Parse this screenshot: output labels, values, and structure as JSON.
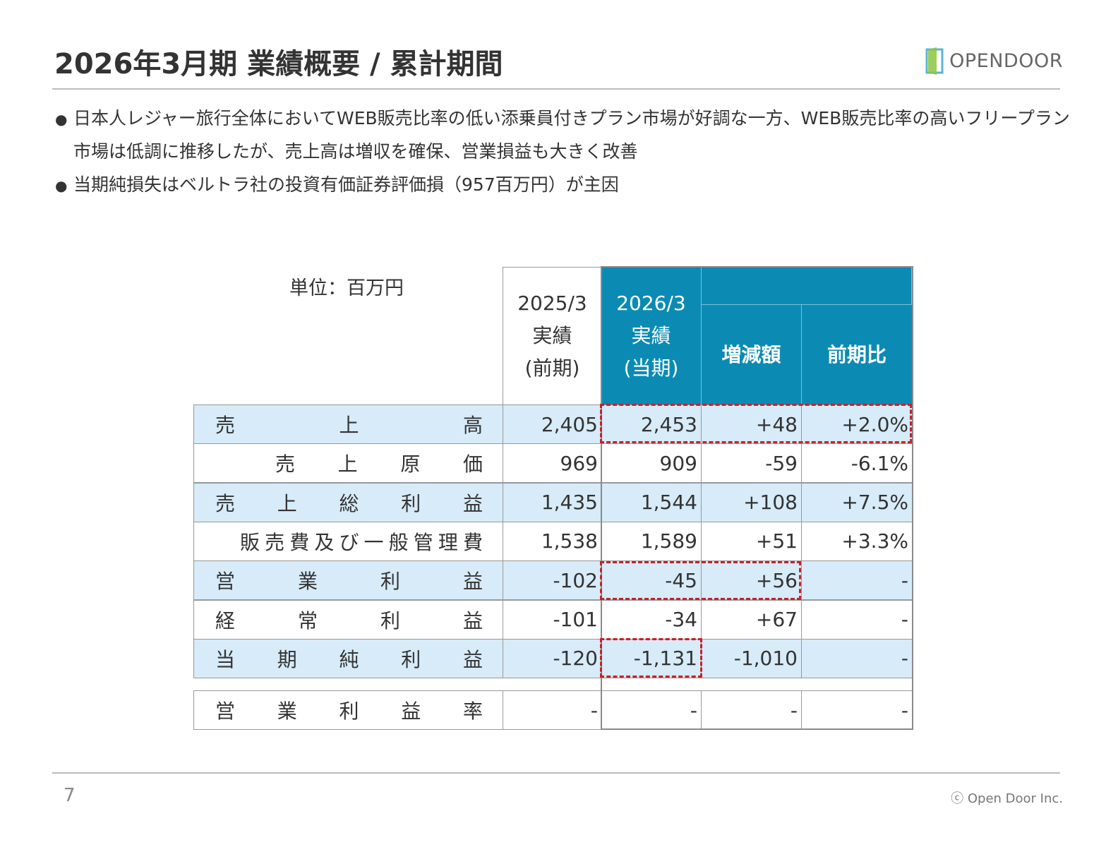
{
  "header": {
    "title": "2026年3月期 業績概要 / 累計期間",
    "logo": "OPENDOOR"
  },
  "bullets": [
    "日本人レジャー旅行全体においてWEB販売比率の低い添乗員付きプラン市場が好調な一方、WEB販売比率の高いフリープラン市場は低調に推移したが、売上高は増収を確保、営業損益も大きく改善",
    "当期純損失はベルトラ社の投資有価証券評価損（957百万円）が主因"
  ],
  "table": {
    "unit": "単位：百万円",
    "columns": [
      [
        "2025/3",
        "実績",
        "(前期)"
      ],
      [
        "2026/3",
        "実績",
        "(当期)"
      ],
      [
        "増減額"
      ],
      [
        "前期比"
      ]
    ],
    "rows": [
      {
        "label": "売上高",
        "values": [
          "2,405",
          "2,453",
          "+48",
          "+2.0%"
        ]
      },
      {
        "label": "売上原価",
        "values": [
          "969",
          "909",
          "-59",
          "-6.1%"
        ]
      },
      {
        "label": "売上総利益",
        "values": [
          "1,435",
          "1,544",
          "+108",
          "+7.5%"
        ]
      },
      {
        "label": "販売費及び一般管理費",
        "values": [
          "1,538",
          "1,589",
          "+51",
          "+3.3%"
        ]
      },
      {
        "label": "営業利益",
        "values": [
          "-102",
          "-45",
          "+56",
          "-"
        ]
      },
      {
        "label": "経常利益",
        "values": [
          "-101",
          "-34",
          "+67",
          "-"
        ]
      },
      {
        "label": "当期純利益",
        "values": [
          "-120",
          "-1,131",
          "-1,010",
          "-"
        ]
      },
      {
        "label": "営業利益率",
        "values": [
          "-",
          "-",
          "-",
          "-"
        ]
      }
    ]
  },
  "footer": {
    "page": "7",
    "copyright": "ⓒ Open Door Inc."
  }
}
